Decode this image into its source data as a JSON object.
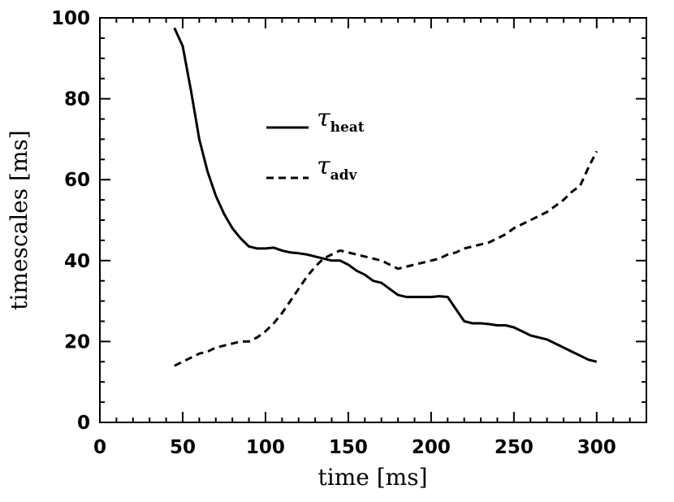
{
  "chart_data": {
    "type": "line",
    "title": "",
    "xlabel": "time [ms]",
    "ylabel": "timescales [ms]",
    "xlim": [
      0,
      330
    ],
    "ylim": [
      0,
      100
    ],
    "x_ticks": [
      0,
      50,
      100,
      150,
      200,
      250,
      300
    ],
    "y_ticks": [
      0,
      20,
      40,
      60,
      80,
      100
    ],
    "x_tick_labels": [
      "0",
      "50",
      "100",
      "150",
      "200",
      "250",
      "300"
    ],
    "y_tick_labels": [
      "0",
      "20",
      "40",
      "60",
      "80",
      "100"
    ],
    "legend_position": "upper-middle",
    "series": [
      {
        "name": "τ_heat",
        "legend_symbol": "τ",
        "legend_subscript": "heat",
        "style": "solid",
        "x": [
          45,
          50,
          55,
          60,
          65,
          70,
          75,
          80,
          85,
          90,
          95,
          100,
          105,
          110,
          115,
          120,
          125,
          130,
          135,
          140,
          145,
          150,
          155,
          160,
          165,
          170,
          175,
          180,
          185,
          190,
          195,
          200,
          205,
          210,
          215,
          220,
          225,
          230,
          235,
          240,
          245,
          250,
          255,
          260,
          265,
          270,
          275,
          280,
          285,
          290,
          295,
          300
        ],
        "y": [
          97.5,
          93,
          82,
          70,
          62,
          56,
          51.5,
          48,
          45.5,
          43.5,
          43,
          43,
          43.2,
          42.5,
          42,
          41.8,
          41.5,
          41,
          40.5,
          40,
          40,
          39,
          37.5,
          36.5,
          35,
          34.5,
          33,
          31.5,
          31,
          31,
          31,
          31,
          31.2,
          31,
          28,
          25,
          24.5,
          24.5,
          24.3,
          24,
          24,
          23.5,
          22.5,
          21.5,
          21,
          20.5,
          19.5,
          18.5,
          17.5,
          16.5,
          15.5,
          15
        ]
      },
      {
        "name": "τ_adv",
        "legend_symbol": "τ",
        "legend_subscript": "adv",
        "style": "dashed",
        "x": [
          45,
          50,
          55,
          60,
          65,
          70,
          75,
          80,
          85,
          90,
          95,
          100,
          105,
          110,
          115,
          120,
          125,
          130,
          135,
          140,
          145,
          150,
          155,
          160,
          165,
          170,
          175,
          180,
          185,
          190,
          195,
          200,
          205,
          210,
          215,
          220,
          225,
          230,
          235,
          240,
          245,
          250,
          255,
          260,
          265,
          270,
          275,
          280,
          285,
          290,
          295,
          300
        ],
        "y": [
          14,
          15,
          16,
          17,
          17.5,
          18.5,
          19,
          19.5,
          20,
          20,
          21,
          22.5,
          24.5,
          27,
          30,
          33,
          36,
          38.5,
          40.5,
          41.5,
          42.5,
          42,
          41.5,
          41,
          40.5,
          40,
          39,
          38,
          38.5,
          39,
          39.5,
          40,
          40.5,
          41.5,
          42,
          43,
          43.5,
          44,
          44.5,
          45.5,
          46.5,
          48,
          49,
          50,
          51,
          52,
          53.5,
          55,
          57,
          58.5,
          63,
          67
        ]
      }
    ]
  }
}
